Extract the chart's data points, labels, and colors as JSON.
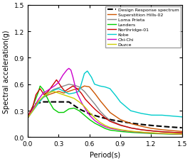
{
  "title": "",
  "xlabel": "Period(s)",
  "ylabel": "Spectral acceleration(g)",
  "xlim": [
    0,
    1.5
  ],
  "ylim": [
    0,
    1.5
  ],
  "xticks": [
    0,
    0.3,
    0.6,
    0.9,
    1.2,
    1.5
  ],
  "yticks": [
    0,
    0.3,
    0.6,
    0.9,
    1.2,
    1.5
  ],
  "legend_entries": [
    {
      "label": "Design Response spectrum",
      "color": "#000000",
      "linestyle": "--",
      "linewidth": 1.5
    },
    {
      "label": "Superstition Hills-02",
      "color": "#cc5500",
      "linestyle": "-",
      "linewidth": 1.0
    },
    {
      "label": "Loma Prieta",
      "color": "#888888",
      "linestyle": "-",
      "linewidth": 1.0
    },
    {
      "label": "Landers",
      "color": "#00cc00",
      "linestyle": "-",
      "linewidth": 1.0
    },
    {
      "label": "Northridge-01",
      "color": "#cc0000",
      "linestyle": "-",
      "linewidth": 1.0
    },
    {
      "label": "Kobe",
      "color": "#00cccc",
      "linestyle": "-",
      "linewidth": 1.0
    },
    {
      "label": "Chi-Chi",
      "color": "#cc00cc",
      "linestyle": "-",
      "linewidth": 1.0
    },
    {
      "label": "Duzce",
      "color": "#cccc00",
      "linestyle": "-",
      "linewidth": 1.0
    }
  ]
}
